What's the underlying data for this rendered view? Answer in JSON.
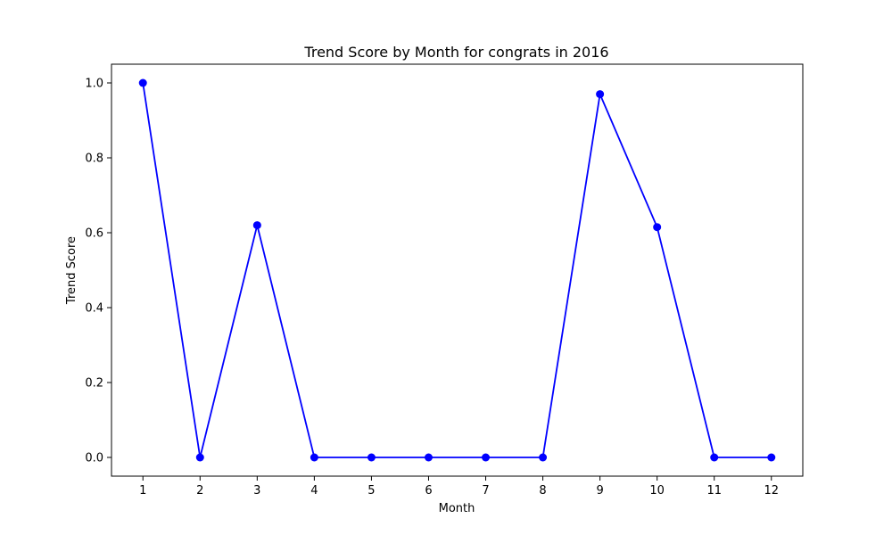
{
  "chart_data": {
    "type": "line",
    "title": "Trend Score by Month for congrats in 2016",
    "xlabel": "Month",
    "ylabel": "Trend Score",
    "x": [
      1,
      2,
      3,
      4,
      5,
      6,
      7,
      8,
      9,
      10,
      11,
      12
    ],
    "series": [
      {
        "values": [
          1.0,
          0.0,
          0.62,
          0.0,
          0.0,
          0.0,
          0.0,
          0.0,
          0.97,
          0.615,
          0.0,
          0.0
        ],
        "color": "#0000ff",
        "marker": "circle"
      }
    ],
    "xticks": [
      "1",
      "2",
      "3",
      "4",
      "5",
      "6",
      "7",
      "8",
      "9",
      "10",
      "11",
      "12"
    ],
    "yticks": [
      "0.0",
      "0.2",
      "0.4",
      "0.6",
      "0.8",
      "1.0"
    ],
    "xlim": [
      0.45,
      12.55
    ],
    "ylim": [
      -0.05,
      1.05
    ],
    "grid": false,
    "legend": "none"
  }
}
